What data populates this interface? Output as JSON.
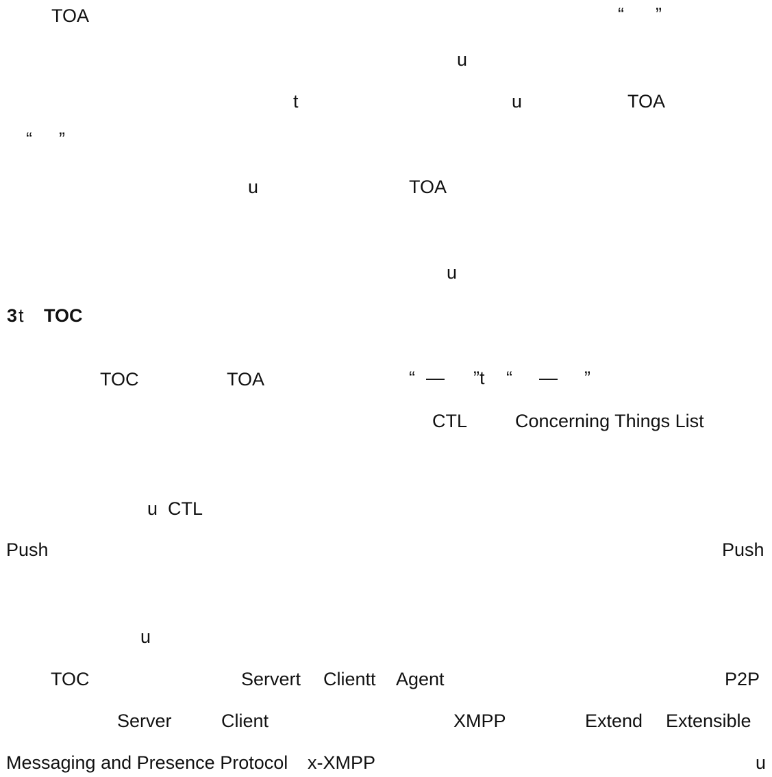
{
  "document": {
    "lines": [
      {
        "fragments": [
          {
            "text": "TOA"
          },
          {
            "text": "“"
          },
          {
            "text": "”"
          }
        ]
      },
      {
        "fragments": [
          {
            "text": "u"
          }
        ]
      },
      {
        "fragments": [
          {
            "text": "t"
          },
          {
            "text": "u"
          },
          {
            "text": "TOA"
          }
        ]
      },
      {
        "fragments": [
          {
            "text": "“"
          },
          {
            "text": "”"
          }
        ]
      },
      {
        "fragments": [
          {
            "text": "u"
          },
          {
            "text": "TOA"
          }
        ]
      },
      {
        "fragments": [
          {
            "text": "u"
          }
        ]
      },
      {
        "fragments": [
          {
            "text": "3"
          },
          {
            "text": "t"
          },
          {
            "text": "TOC"
          }
        ]
      },
      {
        "fragments": [
          {
            "text": "TOC"
          },
          {
            "text": "TOA"
          },
          {
            "text": "“"
          },
          {
            "text": "—"
          },
          {
            "text": "”t"
          },
          {
            "text": "“"
          },
          {
            "text": "—"
          },
          {
            "text": "”"
          }
        ]
      },
      {
        "fragments": [
          {
            "text": "CTL"
          },
          {
            "text": "Concerning Things List"
          }
        ]
      },
      {
        "fragments": [
          {
            "text": "u"
          },
          {
            "text": "CTL"
          }
        ]
      },
      {
        "fragments": [
          {
            "text": "Push"
          },
          {
            "text": "Push"
          }
        ]
      },
      {
        "fragments": [
          {
            "text": "u"
          }
        ]
      },
      {
        "fragments": [
          {
            "text": "TOC"
          },
          {
            "text": "Servert"
          },
          {
            "text": "Clientt"
          },
          {
            "text": "Agent"
          },
          {
            "text": "P2P"
          }
        ]
      },
      {
        "fragments": [
          {
            "text": "Server"
          },
          {
            "text": "Client"
          },
          {
            "text": "XMPP"
          },
          {
            "text": "Extend"
          },
          {
            "text": "Extensible"
          }
        ]
      },
      {
        "fragments": [
          {
            "text": "Messaging and Presence Protocol"
          },
          {
            "text": "x-XMPP"
          },
          {
            "text": "u"
          }
        ]
      }
    ]
  }
}
